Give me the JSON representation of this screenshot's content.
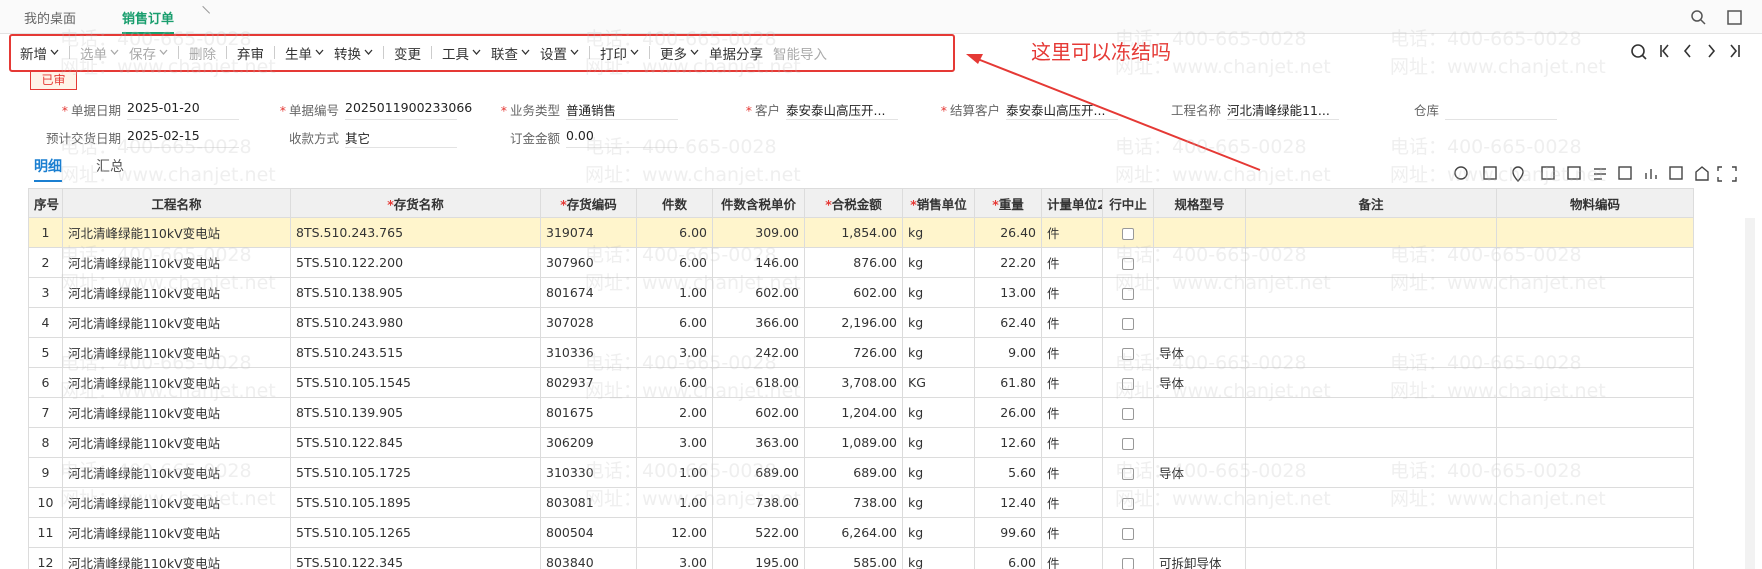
{
  "tabs": [
    {
      "label": "我的桌面"
    },
    {
      "label": "销售订单",
      "active": true
    }
  ],
  "toolbar": [
    {
      "label": "新增",
      "menu": true,
      "sep": true
    },
    {
      "label": "选单",
      "menu": true,
      "disabled": true
    },
    {
      "label": "保存",
      "menu": true,
      "disabled": true,
      "sep": true
    },
    {
      "label": "删除",
      "disabled": true,
      "sep": true
    },
    {
      "label": "弃审",
      "sep": true
    },
    {
      "label": "生单",
      "menu": true
    },
    {
      "label": "转换",
      "menu": true,
      "sep": true
    },
    {
      "label": "变更",
      "sep": true
    },
    {
      "label": "工具",
      "menu": true
    },
    {
      "label": "联查",
      "menu": true
    },
    {
      "label": "设置",
      "menu": true,
      "sep": true
    },
    {
      "label": "打印",
      "menu": true,
      "sep": true
    },
    {
      "label": "更多",
      "menu": true
    },
    {
      "label": "单据分享"
    },
    {
      "label": "智能导入",
      "disabled": true
    }
  ],
  "annotation": "这里可以冻结吗",
  "status": "已审",
  "required_mark": "*",
  "form": [
    [
      {
        "label": "单据日期",
        "value": "2025-01-20",
        "required": true
      },
      {
        "label": "单据编号",
        "value": "2025011900233066",
        "required": true
      },
      {
        "label": "业务类型",
        "value": "普通销售",
        "required": true
      },
      {
        "label": "客户",
        "value": "泰安泰山高压开...",
        "required": true
      },
      {
        "label": "结算客户",
        "value": "泰安泰山高压开...",
        "required": true
      },
      {
        "label": "工程名称",
        "value": "河北清峰绿能11..."
      },
      {
        "label": "仓库"
      }
    ],
    [
      {
        "label": "预计交货日期",
        "value": "2025-02-15"
      },
      {
        "label": "收款方式",
        "value": "其它"
      },
      {
        "label": "订金金额",
        "value": "0.00"
      }
    ]
  ],
  "subtabs": [
    {
      "label": "明细",
      "active": true
    },
    {
      "label": "汇总"
    }
  ],
  "table": {
    "highlight_row": 0,
    "columns": [
      {
        "label": "序号",
        "align": "center"
      },
      {
        "label": "工程名称"
      },
      {
        "label": "存货名称",
        "required": true
      },
      {
        "label": "存货编码",
        "required": true
      },
      {
        "label": "件数",
        "align": "right"
      },
      {
        "label": "件数含税单价",
        "align": "right"
      },
      {
        "label": "合税金额",
        "required": true,
        "align": "right"
      },
      {
        "label": "销售单位",
        "required": true
      },
      {
        "label": "重量",
        "required": true,
        "align": "right"
      },
      {
        "label": "计量单位2"
      },
      {
        "label": "行中止",
        "checkbox": true
      },
      {
        "label": "规格型号"
      },
      {
        "label": "备注"
      },
      {
        "label": "物料编码"
      }
    ],
    "rows": [
      [
        "1",
        "河北清峰绿能110kV变电站",
        "8TS.510.243.765",
        "319074",
        "6.00",
        "309.00",
        "1,854.00",
        "kg",
        "26.40",
        "件",
        null,
        null,
        null,
        null
      ],
      [
        "2",
        "河北清峰绿能110kV变电站",
        "5TS.510.122.200",
        "307960",
        "6.00",
        "146.00",
        "876.00",
        "kg",
        "22.20",
        "件",
        null,
        null,
        null,
        null
      ],
      [
        "3",
        "河北清峰绿能110kV变电站",
        "8TS.510.138.905",
        "801674",
        "1.00",
        "602.00",
        "602.00",
        "kg",
        "13.00",
        "件",
        null,
        null,
        null,
        null
      ],
      [
        "4",
        "河北清峰绿能110kV变电站",
        "8TS.510.243.980",
        "307028",
        "6.00",
        "366.00",
        "2,196.00",
        "kg",
        "62.40",
        "件",
        null,
        null,
        null,
        null
      ],
      [
        "5",
        "河北清峰绿能110kV变电站",
        "8TS.510.243.515",
        "310336",
        "3.00",
        "242.00",
        "726.00",
        "kg",
        "9.00",
        "件",
        null,
        "导体",
        null,
        null
      ],
      [
        "6",
        "河北清峰绿能110kV变电站",
        "5TS.510.105.1545",
        "802937",
        "6.00",
        "618.00",
        "3,708.00",
        "KG",
        "61.80",
        "件",
        null,
        "导体",
        null,
        null
      ],
      [
        "7",
        "河北清峰绿能110kV变电站",
        "8TS.510.139.905",
        "801675",
        "2.00",
        "602.00",
        "1,204.00",
        "kg",
        "26.00",
        "件",
        null,
        null,
        null,
        null
      ],
      [
        "8",
        "河北清峰绿能110kV变电站",
        "5TS.510.122.845",
        "306209",
        "3.00",
        "363.00",
        "1,089.00",
        "kg",
        "12.60",
        "件",
        null,
        null,
        null,
        null
      ],
      [
        "9",
        "河北清峰绿能110kV变电站",
        "5TS.510.105.1725",
        "310330",
        "1.00",
        "689.00",
        "689.00",
        "kg",
        "5.60",
        "件",
        null,
        "导体",
        null,
        null
      ],
      [
        "10",
        "河北清峰绿能110kV变电站",
        "5TS.510.105.1895",
        "803081",
        "1.00",
        "738.00",
        "738.00",
        "kg",
        "12.40",
        "件",
        null,
        null,
        null,
        null
      ],
      [
        "11",
        "河北清峰绿能110kV变电站",
        "5TS.510.105.1265",
        "800504",
        "12.00",
        "522.00",
        "6,264.00",
        "kg",
        "99.60",
        "件",
        null,
        null,
        null,
        null
      ],
      [
        "12",
        "河北清峰绿能110kV变电站",
        "5TS.510.122.345",
        "803840",
        "3.00",
        "195.00",
        "585.00",
        "kg",
        "6.00",
        "件",
        null,
        "可拆卸导体",
        null,
        null
      ]
    ]
  },
  "watermark": {
    "phone": "电话：400-665-0028",
    "url": "网址：www.chanjet.net"
  }
}
